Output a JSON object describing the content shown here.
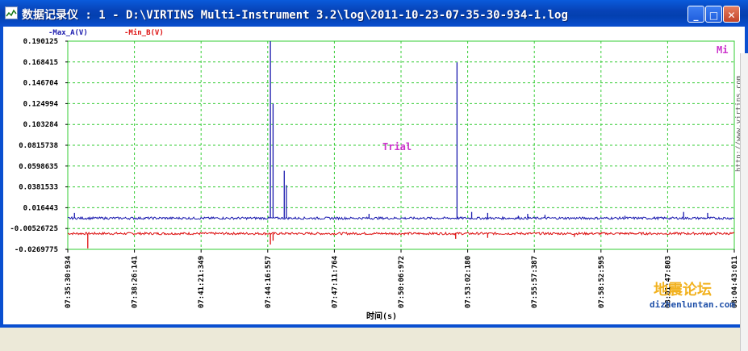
{
  "window": {
    "title": "数据记录仪 : 1 - D:\\VIRTINS Multi-Instrument 3.2\\log\\2011-10-23-07-35-30-934-1.log",
    "minimize_label": "_",
    "maximize_label": "□",
    "close_label": "✕"
  },
  "legend": {
    "series_a": "-Max_A(V)",
    "series_b": "-Min_B(V)",
    "corner_label": "Mi"
  },
  "watermarks": {
    "trial": "Trial",
    "side_url": "http://www.virtins.com",
    "forum_cn": "地震论坛",
    "forum_url": "dizhenluntan.com"
  },
  "colors": {
    "series_a": "#1A1AAE",
    "series_b": "#DD1010",
    "grid": "#33CC33",
    "trial": "#CC33CC",
    "forum_cn": "#F2B220"
  },
  "chart_data": {
    "type": "line",
    "xlabel": "时间(s)",
    "yticks": [
      "0.190125",
      "0.168415",
      "0.146704",
      "0.124994",
      "0.103284",
      "0.0815738",
      "0.0598635",
      "0.0381533",
      "0.016443",
      "-0.00526725",
      "-0.0269775"
    ],
    "ylim": [
      -0.0269775,
      0.190125
    ],
    "xticks": [
      "07:35:30:934",
      "07:38:26:141",
      "07:41:21:349",
      "07:44:16:557",
      "07:47:11:764",
      "07:50:06:972",
      "07:53:02:180",
      "07:55:57:387",
      "07:58:52:595",
      "08:01:47:803",
      "08:04:43:011"
    ],
    "x_range_s": [
      0,
      1752.077
    ],
    "grid": true,
    "series": [
      {
        "name": "-Max_A(V)",
        "baseline": 0.0055,
        "noise": 0.0012,
        "spikes": [
          [
            25,
            0.011
          ],
          [
            760,
            0.19
          ],
          [
            770,
            0.125
          ],
          [
            812,
            0.055
          ],
          [
            820,
            0.04
          ],
          [
            1130,
            0.01
          ],
          [
            1460,
            0.168
          ],
          [
            1515,
            0.012
          ],
          [
            1575,
            0.011
          ],
          [
            1690,
            0.008
          ],
          [
            1725,
            0.01
          ],
          [
            1790,
            0.009
          ],
          [
            2090,
            0.008
          ],
          [
            2200,
            0.007
          ],
          [
            2310,
            0.012
          ],
          [
            2400,
            0.011
          ]
        ]
      },
      {
        "name": "-Min_B(V)",
        "baseline": -0.0105,
        "noise": 0.0012,
        "spikes": [
          [
            75,
            -0.026
          ],
          [
            760,
            -0.022
          ],
          [
            770,
            -0.018
          ],
          [
            1455,
            -0.016
          ],
          [
            1575,
            -0.015
          ],
          [
            1900,
            -0.014
          ]
        ]
      }
    ],
    "x_span_units": 2500
  }
}
